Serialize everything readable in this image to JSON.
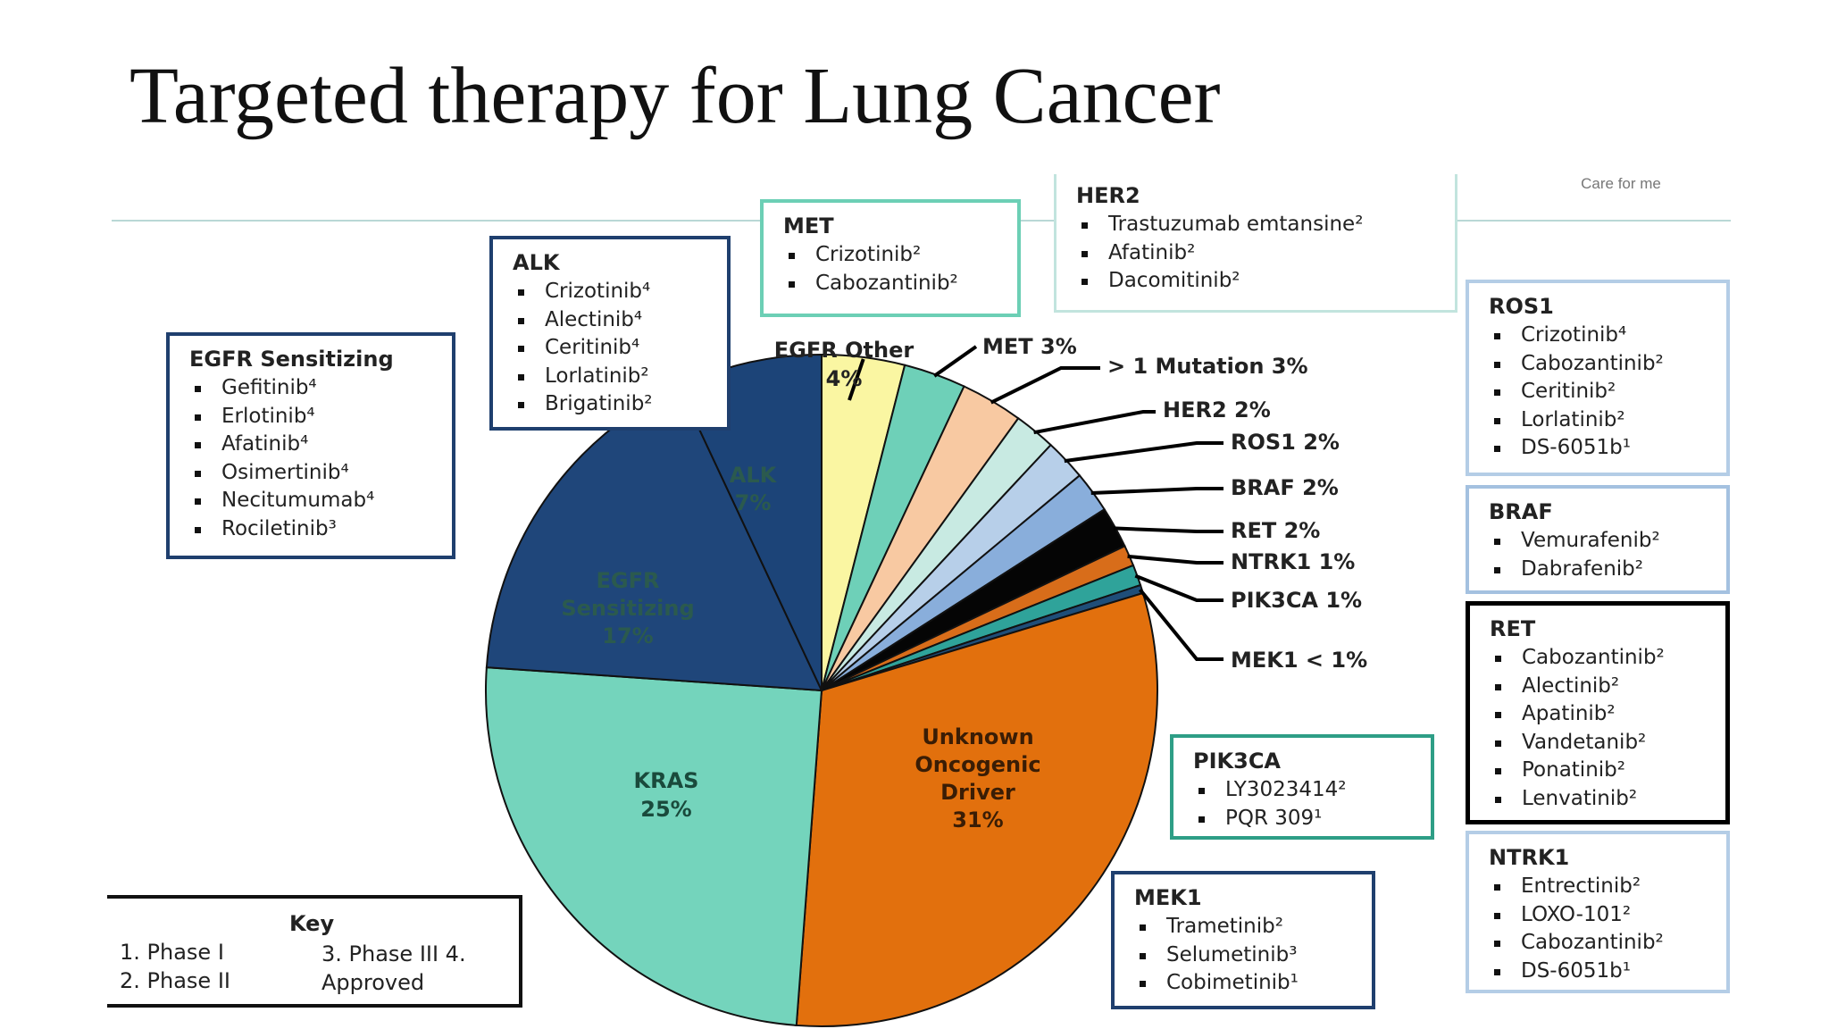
{
  "title": "Targeted therapy for Lung Cancer",
  "top_note": "Care for me",
  "chart_data": {
    "type": "pie",
    "title": "",
    "slices": [
      {
        "label": "EGFR Other",
        "value": 4,
        "value_label": "4%",
        "color": "#faf6a2"
      },
      {
        "label": "MET",
        "value": 3,
        "value_label": "3%",
        "color": "#6ed0b8"
      },
      {
        "label": "> 1 Mutation",
        "value": 3,
        "value_label": "3%",
        "color": "#f8c9a2"
      },
      {
        "label": "HER2",
        "value": 2,
        "value_label": "2%",
        "color": "#c8eae2"
      },
      {
        "label": "ROS1",
        "value": 2,
        "value_label": "2%",
        "color": "#b7cfe9"
      },
      {
        "label": "BRAF",
        "value": 2,
        "value_label": "2%",
        "color": "#89aedb"
      },
      {
        "label": "RET",
        "value": 2,
        "value_label": "2%",
        "color": "#050505"
      },
      {
        "label": "NTRK1",
        "value": 1,
        "value_label": "1%",
        "color": "#d86d1a"
      },
      {
        "label": "PIK3CA",
        "value": 1,
        "value_label": "1%",
        "color": "#2fa39a"
      },
      {
        "label": "MEK1",
        "value": 0.4,
        "value_label": "< 1%",
        "color": "#1f4e79"
      },
      {
        "label": "Unknown Oncogenic Driver",
        "value": 31,
        "value_label": "31%",
        "color": "#e2700d"
      },
      {
        "label": "KRAS",
        "value": 25,
        "value_label": "25%",
        "color": "#74d4bc"
      },
      {
        "label": "EGFR Sensitizing",
        "value": 17,
        "value_label": "17%",
        "color": "#1f467a"
      },
      {
        "label": "ALK",
        "value": 7,
        "value_label": "7%",
        "color": "#1c4478"
      }
    ],
    "outside_labels": {
      "egfr_other_1": "EGFR Other",
      "egfr_other_2": "4%",
      "met": "MET 3%",
      "mutation": "> 1 Mutation 3%",
      "her2": "HER2 2%",
      "ros1": "ROS1 2%",
      "braf": "BRAF 2%",
      "ret": "RET 2%",
      "ntrk1": "NTRK1 1%",
      "pik3ca": "PIK3CA 1%",
      "mek1": "MEK1 < 1%"
    },
    "inside_labels": {
      "alk": [
        "ALK",
        "7%"
      ],
      "egfr_sens": [
        "EGFR",
        "Sensitizing",
        "17%"
      ],
      "kras": [
        "KRAS",
        "25%"
      ],
      "unknown": [
        "Unknown",
        "Oncogenic",
        "Driver",
        "31%"
      ]
    }
  },
  "boxes": {
    "egfr": {
      "title": "EGFR Sensitizing",
      "color": "#1f3f6e",
      "items": [
        "Gefitinib⁴",
        "Erlotinib⁴",
        "Afatinib⁴",
        "Osimertinib⁴",
        "Necitumumab⁴",
        "Rociletinib³"
      ]
    },
    "alk": {
      "title": "ALK",
      "color": "#1f3f6e",
      "items": [
        "Crizotinib⁴",
        "Alectinib⁴",
        "Ceritinib⁴",
        "Lorlatinib²",
        "Brigatinib²"
      ]
    },
    "met": {
      "title": "MET",
      "color": "#6ccfb5",
      "items": [
        "Crizotinib²",
        "Cabozantinib²"
      ]
    },
    "her2": {
      "title": "HER2",
      "color": "#c2e4de",
      "items": [
        "Trastuzumab emtansine²",
        "Afatinib²",
        "Dacomitinib²"
      ]
    },
    "ros1": {
      "title": "ROS1",
      "color": "#b4cde6",
      "items": [
        "Crizotinib⁴",
        "Cabozantinib²",
        "Ceritinib²",
        "Lorlatinib²",
        "DS-6051b¹"
      ]
    },
    "braf": {
      "title": "BRAF",
      "color": "#a4c1e0",
      "items": [
        "Vemurafenib²",
        "Dabrafenib²"
      ]
    },
    "ret": {
      "title": "RET",
      "color": "#000000",
      "items": [
        "Cabozantinib²",
        "Alectinib²",
        "Apatinib²",
        "Vandetanib²",
        "Ponatinib²",
        "Lenvatinib²"
      ]
    },
    "ntrk1": {
      "title": "NTRK1",
      "color": "#b4cde6",
      "items": [
        "Entrectinib²",
        "LOXO-101²",
        "Cabozantinib²",
        "DS-6051b¹"
      ]
    },
    "pik3ca": {
      "title": "PIK3CA",
      "color": "#2e9e86",
      "items": [
        "LY3023414²",
        "PQR 309¹"
      ]
    },
    "mek1": {
      "title": "MEK1",
      "color": "#1f3f6e",
      "items": [
        "Trametinib²",
        "Selumetinib³",
        "Cobimetinib¹"
      ]
    }
  },
  "key": {
    "title": "Key",
    "line1": "1. Phase I",
    "line2": "2. Phase II",
    "line3": "3. Phase III 4.",
    "line4": "Approved"
  }
}
